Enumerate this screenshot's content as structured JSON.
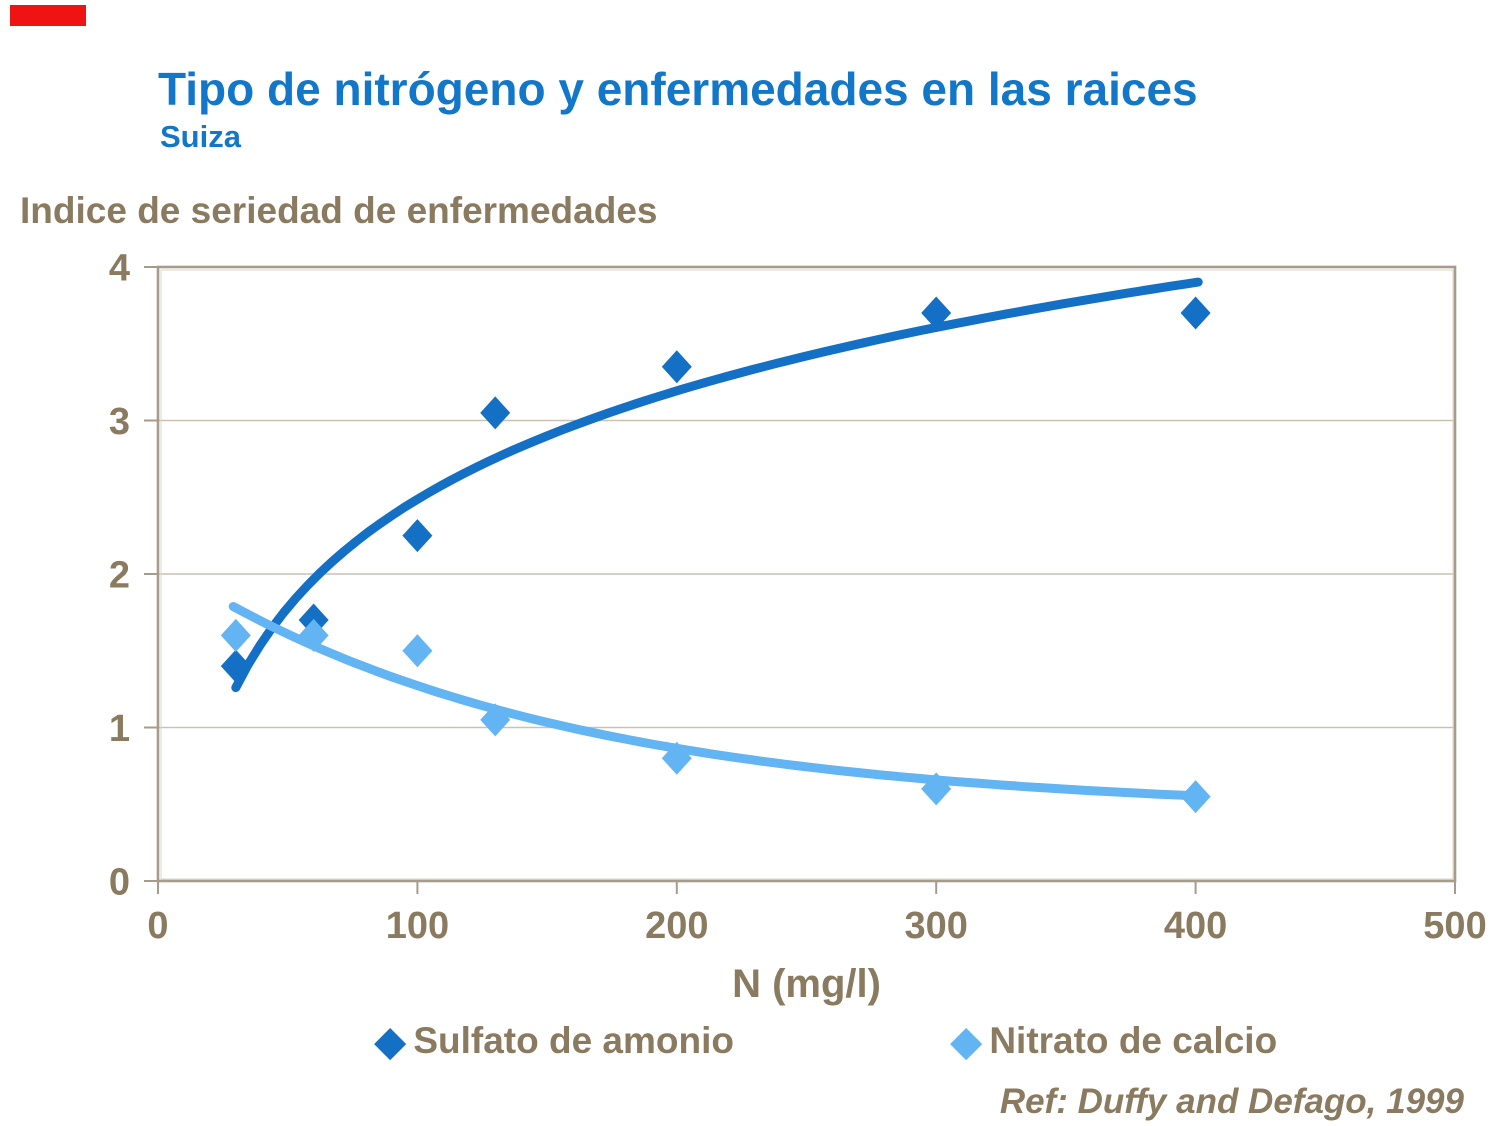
{
  "page": {
    "title": "Tipo de nitrógeno y enfermedades en las raices",
    "subtitle": "Suiza",
    "reference": "Ref: Duffy and Defago, 1999"
  },
  "colors": {
    "title_blue": "#1277c8",
    "accent_red": "#ee1414",
    "text_brown": "#8a7a5f",
    "axis_line": "#a79c8a",
    "gridline": "#cac1b2",
    "series_dark_blue": "#1470c4",
    "series_light_blue": "#62b4f2"
  },
  "chart_data": {
    "type": "scatter",
    "title": "",
    "ylabel": "Indice de seriedad de enfermedades",
    "xlabel": "N (mg/l)",
    "xlim": [
      0,
      500
    ],
    "ylim": [
      0,
      4
    ],
    "x_ticks": [
      0,
      100,
      200,
      300,
      400,
      500
    ],
    "y_ticks": [
      0,
      1,
      2,
      3,
      4
    ],
    "grid": "horizontal-only",
    "legend_position": "bottom",
    "series": [
      {
        "name": "Sulfato de amonio",
        "color": "#1470c4",
        "marker": "diamond",
        "points": [
          [
            30,
            1.4
          ],
          [
            60,
            1.7
          ],
          [
            100,
            2.25
          ],
          [
            130,
            3.05
          ],
          [
            200,
            3.35
          ],
          [
            300,
            3.7
          ],
          [
            400,
            3.7
          ]
        ],
        "trend": {
          "type": "log",
          "a": 1.019,
          "b": -2.206,
          "x_start": 30,
          "x_end": 401
        }
      },
      {
        "name": "Nitrato de calcio",
        "color": "#62b4f2",
        "marker": "diamond",
        "points": [
          [
            30,
            1.6
          ],
          [
            60,
            1.6
          ],
          [
            100,
            1.5
          ],
          [
            130,
            1.05
          ],
          [
            200,
            0.8
          ],
          [
            300,
            0.6
          ],
          [
            400,
            0.55
          ]
        ],
        "trend": {
          "type": "exp_offset",
          "c": 0.45,
          "A": 1.633,
          "k": 0.00686,
          "x_start": 29,
          "x_end": 400
        }
      }
    ]
  }
}
